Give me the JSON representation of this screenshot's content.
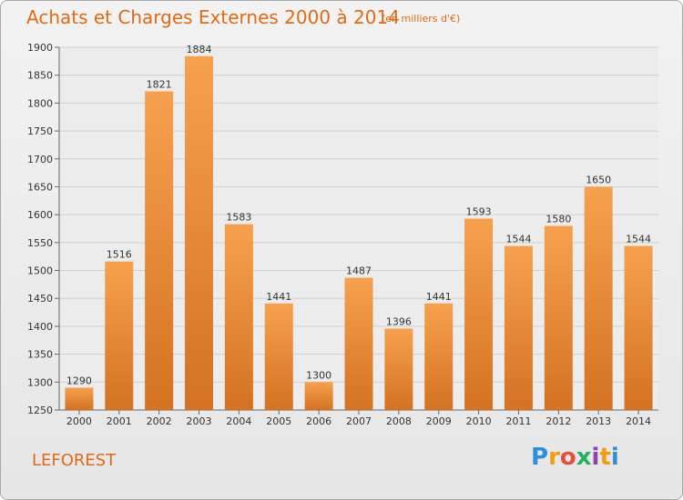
{
  "header": {
    "title": "Achats et Charges Externes 2000 à 2014",
    "subtitle": "(en milliers d'€)"
  },
  "footer": {
    "commune": "LEFOREST",
    "logo": [
      "P",
      "r",
      "o",
      "x",
      "i",
      "t",
      "i"
    ]
  },
  "colors": {
    "accent": "#e06a17",
    "bar_light": "#f6a14f",
    "bar_dark": "#d47221",
    "logo": [
      "#2f8fd8",
      "#f39c12",
      "#e74c3c",
      "#27ae60",
      "#8e44ad",
      "#f39c12",
      "#2f8fd8"
    ]
  },
  "chart_data": {
    "type": "bar",
    "title": "Achats et Charges Externes 2000 à 2014",
    "subtitle": "(en milliers d'€)",
    "categories": [
      "2000",
      "2001",
      "2002",
      "2003",
      "2004",
      "2005",
      "2006",
      "2007",
      "2008",
      "2009",
      "2010",
      "2011",
      "2012",
      "2013",
      "2014"
    ],
    "values": [
      1290,
      1516,
      1821,
      1884,
      1583,
      1441,
      1300,
      1487,
      1396,
      1441,
      1593,
      1544,
      1580,
      1650,
      1544
    ],
    "ylim": [
      1250,
      1900
    ],
    "yticks": [
      1250,
      1300,
      1350,
      1400,
      1450,
      1500,
      1550,
      1600,
      1650,
      1700,
      1750,
      1800,
      1850,
      1900
    ],
    "grid": true,
    "legend": "none"
  }
}
